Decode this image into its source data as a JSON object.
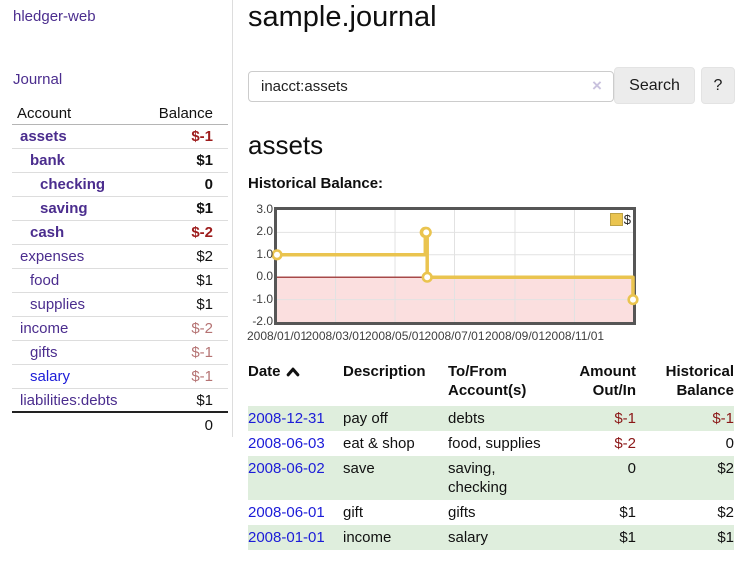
{
  "palette": {
    "link_purple": "#4b2d8e",
    "link_blue": "#1c1cd8",
    "negative_strong": "#9d1c1c",
    "negative_faded": "#b57373",
    "negative_table": "#8b1717",
    "table_stripe_green": "#dfeedd",
    "chart_line_gold": "#eac44f"
  },
  "sidebar": {
    "brand": "hledger-web",
    "nav_journal": "Journal",
    "header": {
      "account": "Account",
      "balance": "Balance"
    },
    "accounts": [
      {
        "name": "assets",
        "level": 1,
        "bold": true,
        "balance": "$-1",
        "neg": true
      },
      {
        "name": "bank",
        "level": 2,
        "bold": true,
        "balance": "$1",
        "neg": false
      },
      {
        "name": "checking",
        "level": 3,
        "bold": true,
        "balance": "0",
        "neg": false
      },
      {
        "name": "saving",
        "level": 3,
        "bold": true,
        "balance": "$1",
        "neg": false
      },
      {
        "name": "cash",
        "level": 2,
        "bold": true,
        "balance": "$-2",
        "neg": true
      },
      {
        "name": "expenses",
        "level": 1,
        "bold": false,
        "balance": "$2",
        "neg": false
      },
      {
        "name": "food",
        "level": 2,
        "bold": false,
        "balance": "$1",
        "neg": false
      },
      {
        "name": "supplies",
        "level": 2,
        "bold": false,
        "balance": "$1",
        "neg": false
      },
      {
        "name": "income",
        "level": 1,
        "bold": false,
        "balance": "$-2",
        "neg": true
      },
      {
        "name": "gifts",
        "level": 2,
        "bold": false,
        "balance": "$-1",
        "neg": true
      },
      {
        "name": "salary",
        "level": 2,
        "bold": false,
        "balance": "$-1",
        "neg": true,
        "link_blue": true
      },
      {
        "name": "liabilities:debts",
        "level": 1,
        "bold": false,
        "balance": "$1",
        "neg": false
      }
    ],
    "total": "0"
  },
  "header": {
    "title": "sample.journal"
  },
  "search": {
    "value": "inacct:assets",
    "clear_icon": "×",
    "button": "Search",
    "help_button": "?"
  },
  "account_page": {
    "heading": "assets",
    "chart_label": "Historical Balance:"
  },
  "chart_data": {
    "type": "line",
    "step": true,
    "title": "Historical Balance",
    "series": [
      {
        "name": "$",
        "color": "#eac44f",
        "points": [
          [
            "2008-01-01",
            1
          ],
          [
            "2008-06-01",
            2
          ],
          [
            "2008-06-02",
            2
          ],
          [
            "2008-06-03",
            0
          ],
          [
            "2008-12-31",
            -1
          ]
        ]
      }
    ],
    "x_range": [
      "2008-01-01",
      "2008-12-31"
    ],
    "x_ticks": [
      {
        "date": "2008-01-01",
        "label": "2008/01/01"
      },
      {
        "date": "2008-03-01",
        "label": "2008/03/01"
      },
      {
        "date": "2008-05-01",
        "label": "2008/05/01"
      },
      {
        "date": "2008-07-01",
        "label": "2008/07/01"
      },
      {
        "date": "2008-09-01",
        "label": "2008/09/01"
      },
      {
        "date": "2008-11-01",
        "label": "2008/11/01"
      }
    ],
    "y_ticks": [
      {
        "value": 3,
        "label": "3.0"
      },
      {
        "value": 2,
        "label": "2.0"
      },
      {
        "value": 1,
        "label": "1.0"
      },
      {
        "value": 0,
        "label": "0.0"
      },
      {
        "value": -1,
        "label": "-1.0"
      },
      {
        "value": -2,
        "label": "-2.0"
      }
    ],
    "ylim": [
      -2,
      3
    ],
    "grid": true,
    "legend": {
      "position": "top-right",
      "label": "$"
    },
    "negative_region_fill": "#f8caca",
    "zero_line_color": "#8f1616"
  },
  "register": {
    "headers": {
      "date": "Date",
      "description": "Description",
      "accounts": "To/From Account(s)",
      "amount": "Amount Out/In",
      "balance": "Historical Balance"
    },
    "rows": [
      {
        "date": "2008-12-31",
        "description": "pay off",
        "accounts": "debts",
        "amount": "$-1",
        "amount_neg": true,
        "balance": "$-1",
        "balance_neg": true
      },
      {
        "date": "2008-06-03",
        "description": "eat & shop",
        "accounts": "food, supplies",
        "amount": "$-2",
        "amount_neg": true,
        "balance": "0",
        "balance_neg": false
      },
      {
        "date": "2008-06-02",
        "description": "save",
        "accounts": "saving, checking",
        "amount": "0",
        "amount_neg": false,
        "balance": "$2",
        "balance_neg": false
      },
      {
        "date": "2008-06-01",
        "description": "gift",
        "accounts": "gifts",
        "amount": "$1",
        "amount_neg": false,
        "balance": "$2",
        "balance_neg": false
      },
      {
        "date": "2008-01-01",
        "description": "income",
        "accounts": "salary",
        "amount": "$1",
        "amount_neg": false,
        "balance": "$1",
        "balance_neg": false
      }
    ]
  }
}
